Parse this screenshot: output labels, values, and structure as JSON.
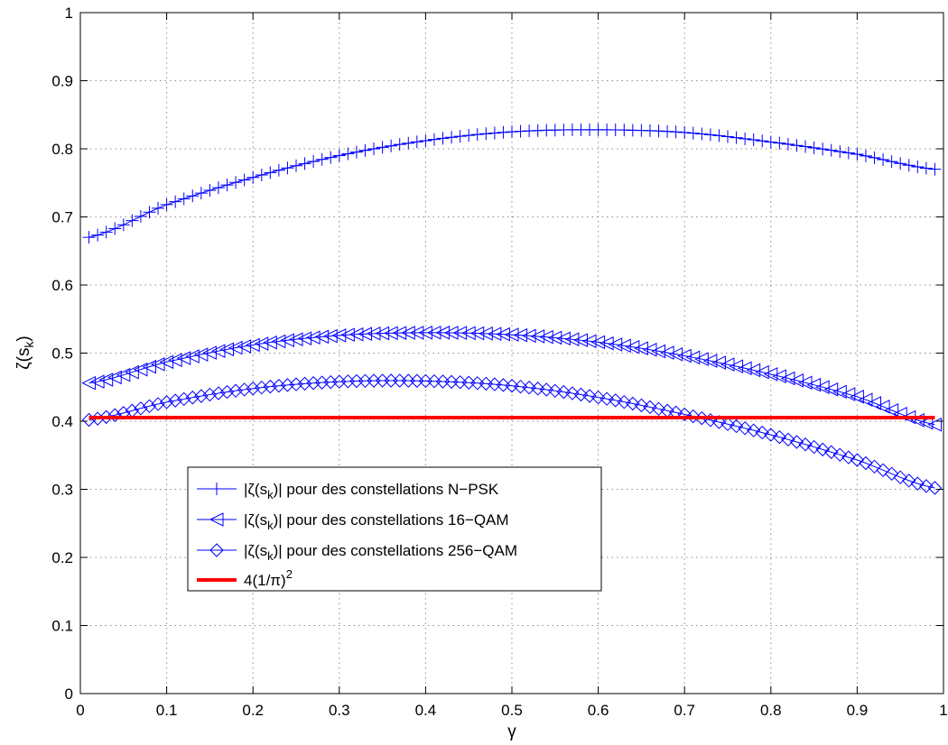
{
  "chart_data": {
    "type": "line",
    "title": "",
    "xlabel": "γ",
    "ylabel": "ζ(s_k)",
    "xlim": [
      0,
      1
    ],
    "ylim": [
      0,
      1
    ],
    "grid": true,
    "legend_position": "lower-left",
    "xticks": [
      0,
      0.1,
      0.2,
      0.3,
      0.4,
      0.5,
      0.6,
      0.7,
      0.8,
      0.9,
      1
    ],
    "yticks": [
      0,
      0.1,
      0.2,
      0.3,
      0.4,
      0.5,
      0.6,
      0.7,
      0.8,
      0.9,
      1
    ],
    "xtick_labels": [
      "0",
      "0.1",
      "0.2",
      "0.3",
      "0.4",
      "0.5",
      "0.6",
      "0.7",
      "0.8",
      "0.9",
      "1"
    ],
    "ytick_labels": [
      "0",
      "0.1",
      "0.2",
      "0.3",
      "0.4",
      "0.5",
      "0.6",
      "0.7",
      "0.8",
      "0.9",
      "1"
    ],
    "x_range": [
      0.01,
      0.99
    ],
    "x_step": 0.01,
    "series": [
      {
        "name": "|ζ(s_k)| pour des constellations N−PSK",
        "legend_parts": {
          "pre": "|ζ(s",
          "sub": "k",
          "post": ")| pour des constellations N−PSK"
        },
        "marker": "plus",
        "color": "#0000ff",
        "x": [
          0.01,
          0.1,
          0.2,
          0.3,
          0.4,
          0.5,
          0.6,
          0.7,
          0.8,
          0.9,
          0.99
        ],
        "y": [
          0.67,
          0.718,
          0.758,
          0.79,
          0.812,
          0.825,
          0.828,
          0.824,
          0.81,
          0.792,
          0.77
        ]
      },
      {
        "name": "|ζ(s_k)| pour des constellations 16−QAM",
        "legend_parts": {
          "pre": "|ζ(s",
          "sub": "k",
          "post": ")| pour des constellations 16−QAM"
        },
        "marker": "triangle-left",
        "color": "#0000ff",
        "x": [
          0.01,
          0.1,
          0.2,
          0.3,
          0.4,
          0.5,
          0.6,
          0.7,
          0.8,
          0.9,
          0.99
        ],
        "y": [
          0.456,
          0.487,
          0.512,
          0.526,
          0.53,
          0.527,
          0.516,
          0.496,
          0.469,
          0.436,
          0.395
        ]
      },
      {
        "name": "|ζ(s_k)|  pour des constellations 256−QAM",
        "legend_parts": {
          "pre": "|ζ(s",
          "sub": "k",
          "post": ")|  pour des constellations 256−QAM"
        },
        "marker": "diamond",
        "color": "#0000ff",
        "x": [
          0.01,
          0.1,
          0.2,
          0.3,
          0.4,
          0.5,
          0.6,
          0.7,
          0.8,
          0.9,
          0.99
        ],
        "y": [
          0.402,
          0.428,
          0.448,
          0.458,
          0.459,
          0.452,
          0.435,
          0.41,
          0.38,
          0.343,
          0.302
        ]
      },
      {
        "name": "4(1/π)^2",
        "legend_parts": {
          "pre": "4(1/π)",
          "sup": "2",
          "post": ""
        },
        "marker": "none",
        "color": "#ff0000",
        "x": [
          0.01,
          0.99
        ],
        "y": [
          0.4053,
          0.4053
        ]
      }
    ]
  }
}
